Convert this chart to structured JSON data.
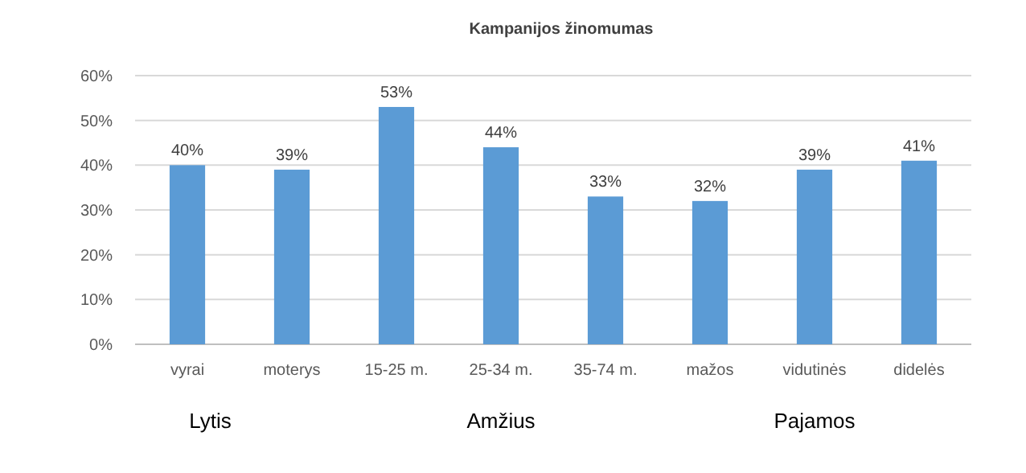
{
  "chart_data": {
    "type": "bar",
    "title": "Kampanijos  žinomumas",
    "categories": [
      "vyrai",
      "moterys",
      "15-25 m.",
      "25-34 m.",
      "35-74 m.",
      "mažos",
      "vidutinės",
      "didelės"
    ],
    "values": [
      40,
      39,
      53,
      44,
      33,
      32,
      39,
      41
    ],
    "value_labels": [
      "40%",
      "39%",
      "53%",
      "44%",
      "33%",
      "32%",
      "39%",
      "41%"
    ],
    "color": "#5b9bd5",
    "ylim": [
      0,
      60
    ],
    "yticks": [
      {
        "value": 0,
        "label": "0%"
      },
      {
        "value": 10,
        "label": "10%"
      },
      {
        "value": 20,
        "label": "20%"
      },
      {
        "value": 30,
        "label": "30%"
      },
      {
        "value": 40,
        "label": "40%"
      },
      {
        "value": 50,
        "label": "50%"
      },
      {
        "value": 60,
        "label": "60%"
      }
    ],
    "grid": "y",
    "annotations": [
      "Lytis",
      "Amžius",
      "Pajamos"
    ]
  }
}
